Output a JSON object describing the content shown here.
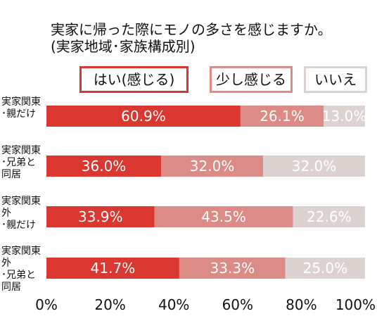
{
  "chart_data": {
    "type": "bar",
    "orientation": "horizontal-stacked-100",
    "title_line1": "実家に帰った際にモノの多さを感じますか。",
    "title_line2": "(実家地域･家族構成別)",
    "categories": [
      "実家関東\n･親だけ",
      "実家関東\n･兄弟と\n同居",
      "実家関東外\n･親だけ",
      "実家関東外\n･兄弟と\n同居"
    ],
    "series": [
      {
        "name": "はい(感じる)",
        "color": "#d9372f",
        "values": [
          60.9,
          36.0,
          33.9,
          41.7
        ]
      },
      {
        "name": "少し感じる",
        "color": "#dd8b86",
        "values": [
          26.1,
          32.0,
          43.5,
          33.3
        ]
      },
      {
        "name": "いいえ",
        "color": "#dcd3d1",
        "values": [
          13.0,
          32.0,
          22.6,
          25.0
        ]
      }
    ],
    "xlim": [
      0,
      100
    ],
    "x_ticks": [
      "0%",
      "20%",
      "40%",
      "60%",
      "80%",
      "100%"
    ],
    "value_suffix": "%",
    "legend_position": "top",
    "grid": false
  }
}
